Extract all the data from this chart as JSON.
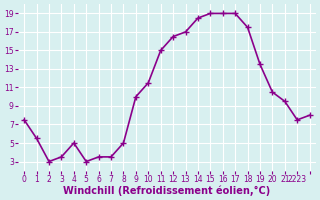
{
  "x": [
    0,
    1,
    2,
    3,
    4,
    5,
    6,
    7,
    8,
    9,
    10,
    11,
    12,
    13,
    14,
    15,
    16,
    17,
    18,
    19,
    20,
    21,
    22,
    23
  ],
  "y": [
    7.5,
    5.5,
    3.0,
    3.5,
    5.0,
    3.0,
    3.5,
    3.5,
    5.0,
    10.0,
    11.5,
    15.0,
    16.5,
    17.0,
    18.5,
    19.0,
    19.0,
    19.0,
    17.5,
    13.5,
    10.5,
    9.5,
    7.5,
    8.0
  ],
  "line_color": "#8B008B",
  "marker": "+",
  "marker_size": 4,
  "linewidth": 1.2,
  "background_color": "#d8f0f0",
  "grid_color": "#ffffff",
  "xlabel": "Windchill (Refroidissement éolien,°C)",
  "xlabel_fontsize": 7,
  "tick_fontsize": 5.5,
  "ylim": [
    2,
    20
  ],
  "xlim": [
    -0.5,
    23.5
  ],
  "xtick_labels": [
    "0",
    "1",
    "2",
    "3",
    "4",
    "5",
    "6",
    "7",
    "8",
    "9",
    "10",
    "11",
    "12",
    "13",
    "14",
    "15",
    "16",
    "17",
    "18",
    "19",
    "20",
    "21",
    "2223",
    ""
  ],
  "ytick_labels": [
    "3",
    "5",
    "7",
    "9",
    "11",
    "13",
    "15",
    "17",
    "19"
  ]
}
